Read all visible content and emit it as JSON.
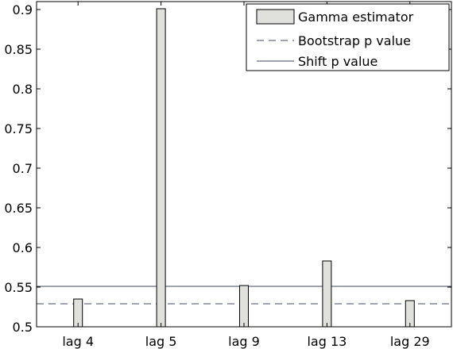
{
  "chart_data": {
    "type": "bar",
    "categories": [
      "lag 4",
      "lag 5",
      "lag 9",
      "lag 13",
      "lag 29"
    ],
    "series": [
      {
        "name": "Gamma estimator",
        "values": [
          0.535,
          0.901,
          0.552,
          0.583,
          0.533
        ]
      }
    ],
    "reference_lines": [
      {
        "name": "Bootstrap p value",
        "value": 0.529,
        "style": "dashed"
      },
      {
        "name": "Shift p value",
        "value": 0.551,
        "style": "solid"
      }
    ],
    "ylim": [
      0.5,
      0.91
    ],
    "yticks": [
      0.5,
      0.55,
      0.6,
      0.65,
      0.7,
      0.75,
      0.8,
      0.85,
      0.9
    ],
    "ytick_labels": [
      "0.5",
      "0.55",
      "0.6",
      "0.65",
      "0.7",
      "0.75",
      "0.8",
      "0.85",
      "0.9"
    ],
    "title": "",
    "xlabel": "",
    "ylabel": "",
    "grid": false,
    "legend_position": "top-right",
    "colors": {
      "bar_fill": "#e0e0dc",
      "bar_stroke": "#000000",
      "bootstrap_line": "#3f4a5c",
      "shift_line": "#3f4a5c",
      "axes": "#000000"
    }
  }
}
